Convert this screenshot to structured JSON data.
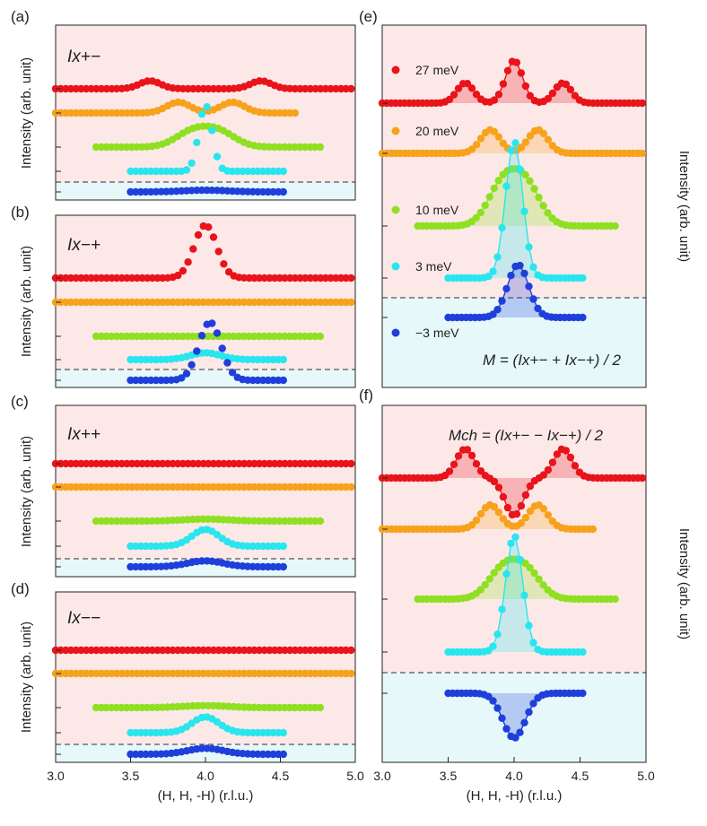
{
  "figure": {
    "x_axis_label": "(H, H, -H) (r.l.u.)",
    "x_ticks": [
      "3.0",
      "3.5",
      "4.0",
      "4.5",
      "5.0"
    ],
    "colors": {
      "27 meV": "#e8141a",
      "20 meV": "#f7a21b",
      "10 meV": "#8ee021",
      "3 meV": "#29e6ee",
      "-3 meV": "#1f3fdb",
      "pink": "#fde8e8",
      "cyan": "#e6f8fa"
    }
  },
  "chart_data": [
    {
      "type": "scatter",
      "panel": "(a)",
      "title": "Ix+−",
      "ylabel": "Intensity (arb. unit)",
      "xlim": [
        3.0,
        5.0
      ],
      "series": [
        {
          "name": "27 meV",
          "model": "two_peaks",
          "center": [
            3.63,
            4.37
          ],
          "amplitude": 0.55,
          "width": 0.07,
          "baseline": 0,
          "x_range": [
            3.0,
            5.0
          ],
          "step": 0.034
        },
        {
          "name": "20 meV",
          "model": "two_peaks",
          "center": [
            3.82,
            4.18
          ],
          "amplitude": 0.75,
          "width": 0.08,
          "baseline": 0,
          "x_range": [
            3.0,
            4.62
          ],
          "step": 0.034
        },
        {
          "name": "10 meV",
          "model": "flat_top",
          "center": 4.0,
          "amplitude": 1.85,
          "width": 0.11,
          "baseline": 0,
          "x_range": [
            3.27,
            4.77
          ],
          "step": 0.034
        },
        {
          "name": "3 meV",
          "model": "peak",
          "center": 4.0,
          "amplitude": 4.6,
          "width": 0.045,
          "baseline": 0,
          "x_range": [
            3.5,
            4.52
          ],
          "step": 0.034
        },
        {
          "name": "-3 meV",
          "model": "peak",
          "center": 4.0,
          "amplitude": 0.12,
          "width": 0.15,
          "baseline": 0,
          "x_range": [
            3.5,
            4.52
          ],
          "step": 0.034
        }
      ]
    },
    {
      "type": "scatter",
      "panel": "(b)",
      "title": "Ix−+",
      "ylabel": "Intensity (arb. unit)",
      "xlim": [
        3.0,
        5.0
      ],
      "series": [
        {
          "name": "27 meV",
          "model": "peak",
          "center": 4.0,
          "amplitude": 1.55,
          "width": 0.075,
          "baseline": 0,
          "x_range": [
            3.0,
            5.0
          ],
          "step": 0.034
        },
        {
          "name": "20 meV",
          "model": "flat",
          "center": 4.0,
          "amplitude": 0,
          "width": 0.1,
          "baseline": 0,
          "x_range": [
            3.0,
            5.0
          ],
          "step": 0.034
        },
        {
          "name": "10 meV",
          "model": "flat",
          "center": 4.0,
          "amplitude": 0,
          "width": 0.1,
          "baseline": 0,
          "x_range": [
            3.27,
            4.77
          ],
          "step": 0.034
        },
        {
          "name": "3 meV",
          "model": "peak",
          "center": 4.0,
          "amplitude": 0.2,
          "width": 0.1,
          "baseline": 0,
          "x_range": [
            3.5,
            4.52
          ],
          "step": 0.034
        },
        {
          "name": "-3 meV",
          "model": "peak",
          "center": 4.03,
          "amplitude": 1.7,
          "width": 0.075,
          "baseline": 0,
          "x_range": [
            3.5,
            4.52
          ],
          "step": 0.034
        }
      ]
    },
    {
      "type": "scatter",
      "panel": "(c)",
      "title": "Ix++",
      "ylabel": "Intensity (arb. unit)",
      "xlim": [
        3.0,
        5.0
      ],
      "series": [
        {
          "name": "27 meV",
          "model": "flat",
          "center": 4.0,
          "amplitude": 0,
          "width": 0.1,
          "baseline": 0,
          "x_range": [
            3.0,
            5.0
          ],
          "step": 0.034
        },
        {
          "name": "20 meV",
          "model": "flat",
          "center": 4.0,
          "amplitude": 0,
          "width": 0.1,
          "baseline": 0,
          "x_range": [
            3.0,
            5.0
          ],
          "step": 0.034
        },
        {
          "name": "10 meV",
          "model": "peak",
          "center": 4.0,
          "amplitude": 0.1,
          "width": 0.15,
          "baseline": 0,
          "x_range": [
            3.27,
            4.77
          ],
          "step": 0.034
        },
        {
          "name": "3 meV",
          "model": "peak",
          "center": 4.0,
          "amplitude": 0.85,
          "width": 0.09,
          "baseline": 0,
          "x_range": [
            3.5,
            4.52
          ],
          "step": 0.034
        },
        {
          "name": "-3 meV",
          "model": "peak",
          "center": 4.0,
          "amplitude": 0.3,
          "width": 0.12,
          "baseline": 0,
          "x_range": [
            3.5,
            4.52
          ],
          "step": 0.034
        }
      ]
    },
    {
      "type": "scatter",
      "panel": "(d)",
      "title": "Ix−−",
      "ylabel": "Intensity (arb. unit)",
      "xlim": [
        3.0,
        5.0
      ],
      "series": [
        {
          "name": "27 meV",
          "model": "flat",
          "center": 4.0,
          "amplitude": 0,
          "width": 0.1,
          "baseline": 0,
          "x_range": [
            3.0,
            5.0
          ],
          "step": 0.034
        },
        {
          "name": "20 meV",
          "model": "flat",
          "center": 4.0,
          "amplitude": 0,
          "width": 0.1,
          "baseline": 0,
          "x_range": [
            3.0,
            5.0
          ],
          "step": 0.034
        },
        {
          "name": "10 meV",
          "model": "peak",
          "center": 4.0,
          "amplitude": 0.1,
          "width": 0.15,
          "baseline": 0,
          "x_range": [
            3.27,
            4.77
          ],
          "step": 0.034
        },
        {
          "name": "3 meV",
          "model": "peak",
          "center": 4.0,
          "amplitude": 0.8,
          "width": 0.09,
          "baseline": 0,
          "x_range": [
            3.5,
            4.52
          ],
          "step": 0.034
        },
        {
          "name": "-3 meV",
          "model": "peak",
          "center": 4.0,
          "amplitude": 0.3,
          "width": 0.12,
          "baseline": 0,
          "x_range": [
            3.5,
            4.52
          ],
          "step": 0.034
        }
      ]
    },
    {
      "type": "area",
      "panel": "(e)",
      "title": "M = (Ix+− + Ix−+) / 2",
      "ylabel": "Intensity (arb. unit)",
      "xlim": [
        3.0,
        5.0
      ],
      "series": [
        {
          "name": "27 meV",
          "model": "three_peaks",
          "center": [
            3.63,
            4.0,
            4.37
          ],
          "amplitude": [
            0.9,
            1.9,
            0.9
          ],
          "width": 0.065,
          "baseline": 0,
          "x_range": [
            3.0,
            5.0
          ],
          "step": 0.034
        },
        {
          "name": "20 meV",
          "model": "two_peaks",
          "center": [
            3.82,
            4.18
          ],
          "amplitude": 1.05,
          "width": 0.075,
          "baseline": 0,
          "x_range": [
            3.0,
            5.0
          ],
          "step": 0.034
        },
        {
          "name": "10 meV",
          "model": "flat_top",
          "center": 4.0,
          "amplitude": 3.25,
          "width": 0.11,
          "baseline": 0,
          "x_range": [
            3.27,
            4.77
          ],
          "step": 0.034
        },
        {
          "name": "3 meV",
          "model": "peak",
          "center": 4.0,
          "amplitude": 6.1,
          "width": 0.065,
          "baseline": 0,
          "x_range": [
            3.5,
            4.52
          ],
          "step": 0.034
        },
        {
          "name": "-3 meV",
          "model": "peak",
          "center": 4.03,
          "amplitude": 2.35,
          "width": 0.08,
          "baseline": 0,
          "x_range": [
            3.5,
            4.52
          ],
          "step": 0.034
        }
      ]
    },
    {
      "type": "area",
      "panel": "(f)",
      "title": "Mch = (Ix+− − Ix−+) / 2",
      "ylabel": "Intensity (arb. unit)",
      "xlim": [
        3.0,
        5.0
      ],
      "series": [
        {
          "name": "27 meV",
          "model": "two_peaks_dip",
          "center": [
            3.63,
            4.37,
            4.0
          ],
          "amplitude": [
            1.2,
            1.2,
            -1.55
          ],
          "width": [
            0.07,
            0.07,
            0.07
          ],
          "baseline": 0,
          "x_range": [
            3.0,
            5.0
          ],
          "step": 0.034
        },
        {
          "name": "20 meV",
          "model": "two_peaks",
          "center": [
            3.82,
            4.18
          ],
          "amplitude": 1.0,
          "width": 0.075,
          "baseline": 0,
          "x_range": [
            3.0,
            4.62
          ],
          "step": 0.034
        },
        {
          "name": "10 meV",
          "model": "flat_top",
          "center": 4.0,
          "amplitude": 2.1,
          "width": 0.11,
          "baseline": 0,
          "x_range": [
            3.27,
            4.77
          ],
          "step": 0.034
        },
        {
          "name": "3 meV",
          "model": "peak",
          "center": 4.0,
          "amplitude": 4.8,
          "width": 0.065,
          "baseline": 0,
          "x_range": [
            3.5,
            4.52
          ],
          "step": 0.034
        },
        {
          "name": "-3 meV",
          "model": "peak",
          "center": 4.0,
          "amplitude": -1.85,
          "width": 0.085,
          "baseline": 0,
          "x_range": [
            3.5,
            4.52
          ],
          "step": 0.034
        }
      ]
    }
  ],
  "panel_e_legend": [
    "27 meV",
    "20 meV",
    "10 meV",
    "3 meV",
    "−3 meV"
  ]
}
